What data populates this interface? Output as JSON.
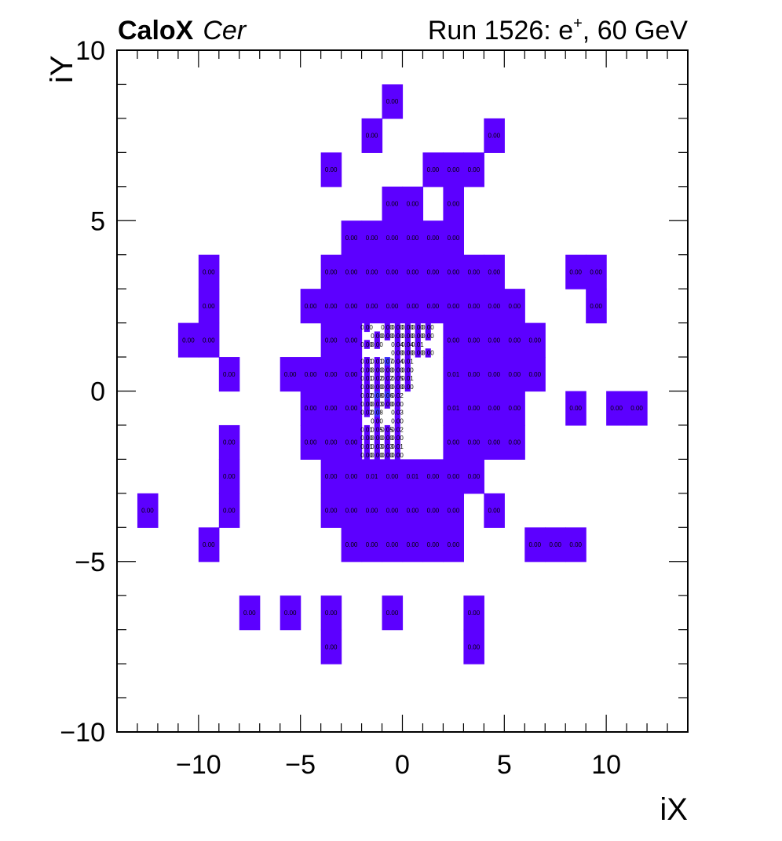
{
  "header": {
    "experiment": "CaloX",
    "channel": "Cer",
    "run_prefix": "Run 1526: e",
    "run_sup": "+",
    "run_suffix": ", 60 GeV"
  },
  "chart_data": {
    "type": "heatmap",
    "xlabel": "iX",
    "ylabel": "iY",
    "xlim": [
      -14,
      14
    ],
    "ylim": [
      -10,
      10
    ],
    "x_ticks": [
      -10,
      -5,
      0,
      5,
      10
    ],
    "y_ticks": [
      -10,
      -5,
      0,
      5,
      10
    ],
    "x_tick_labels": [
      "−10",
      "−5",
      "0",
      "5",
      "10"
    ],
    "y_tick_labels": [
      "−10",
      "−5",
      "0",
      "5",
      "10"
    ],
    "grid": false,
    "legend": "none",
    "colors": {
      "fill": "#5c00ff",
      "fill_high": "#3c2eff",
      "frame": "#000000"
    },
    "cells": [
      {
        "x": -0.5,
        "y": 8.5,
        "label": "0.00"
      },
      {
        "x": -1.5,
        "y": 7.5,
        "label": "0.00"
      },
      {
        "x": 4.5,
        "y": 7.5,
        "label": "0.00"
      },
      {
        "x": -3.5,
        "y": 6.5,
        "label": "0.00"
      },
      {
        "x": 1.5,
        "y": 6.5,
        "label": "0.00"
      },
      {
        "x": 2.5,
        "y": 6.5,
        "label": "0.00"
      },
      {
        "x": 3.5,
        "y": 6.5,
        "label": "0.00"
      },
      {
        "x": -0.5,
        "y": 5.5,
        "label": "0.00"
      },
      {
        "x": 0.5,
        "y": 5.5,
        "label": "0.00"
      },
      {
        "x": 2.5,
        "y": 5.5,
        "label": "0.00"
      },
      {
        "x": -2.5,
        "y": 4.5,
        "label": "0.00"
      },
      {
        "x": -1.5,
        "y": 4.5,
        "label": "0.00"
      },
      {
        "x": -0.5,
        "y": 4.5,
        "label": "0.00"
      },
      {
        "x": 0.5,
        "y": 4.5,
        "label": "0.00"
      },
      {
        "x": 1.5,
        "y": 4.5,
        "label": "0.00"
      },
      {
        "x": 2.5,
        "y": 4.5,
        "label": "0.00"
      },
      {
        "x": -9.5,
        "y": 3.5,
        "label": "0.00"
      },
      {
        "x": -3.5,
        "y": 3.5,
        "label": "0.00"
      },
      {
        "x": -2.5,
        "y": 3.5,
        "label": "0.00"
      },
      {
        "x": -1.5,
        "y": 3.5,
        "label": "0.00"
      },
      {
        "x": -0.5,
        "y": 3.5,
        "label": "0.00"
      },
      {
        "x": 0.5,
        "y": 3.5,
        "label": "0.00"
      },
      {
        "x": 1.5,
        "y": 3.5,
        "label": "0.00"
      },
      {
        "x": 2.5,
        "y": 3.5,
        "label": "0.00"
      },
      {
        "x": 3.5,
        "y": 3.5,
        "label": "0.00"
      },
      {
        "x": 4.5,
        "y": 3.5,
        "label": "0.00"
      },
      {
        "x": 8.5,
        "y": 3.5,
        "label": "0.00"
      },
      {
        "x": 9.5,
        "y": 3.5,
        "label": "0.00"
      },
      {
        "x": -9.5,
        "y": 2.5,
        "label": "0.00"
      },
      {
        "x": -4.5,
        "y": 2.5,
        "label": "0.00"
      },
      {
        "x": -3.5,
        "y": 2.5,
        "label": "0.00"
      },
      {
        "x": -2.5,
        "y": 2.5,
        "label": "0.00"
      },
      {
        "x": -1.5,
        "y": 2.5,
        "label": "0.00"
      },
      {
        "x": -0.5,
        "y": 2.5,
        "label": "0.00"
      },
      {
        "x": 0.5,
        "y": 2.5,
        "label": "0.00"
      },
      {
        "x": 1.5,
        "y": 2.5,
        "label": "0.00"
      },
      {
        "x": 2.5,
        "y": 2.5,
        "label": "0.00"
      },
      {
        "x": 3.5,
        "y": 2.5,
        "label": "0.00"
      },
      {
        "x": 4.5,
        "y": 2.5,
        "label": "0.00"
      },
      {
        "x": 5.5,
        "y": 2.5,
        "label": "0.00"
      },
      {
        "x": 9.5,
        "y": 2.5,
        "label": "0.00"
      },
      {
        "x": -10.5,
        "y": 1.5,
        "label": "0.00"
      },
      {
        "x": -9.5,
        "y": 1.5,
        "label": "0.00"
      },
      {
        "x": -3.5,
        "y": 1.5,
        "label": "0.00"
      },
      {
        "x": -2.5,
        "y": 1.5,
        "label": "0.00"
      },
      {
        "x": 2.5,
        "y": 1.5,
        "label": "0.00"
      },
      {
        "x": 3.5,
        "y": 1.5,
        "label": "0.00"
      },
      {
        "x": 4.5,
        "y": 1.5,
        "label": "0.00"
      },
      {
        "x": 5.5,
        "y": 1.5,
        "label": "0.00"
      },
      {
        "x": 6.5,
        "y": 1.5,
        "label": "0.00"
      },
      {
        "x": -8.5,
        "y": 0.5,
        "label": "0.00"
      },
      {
        "x": -5.5,
        "y": 0.5,
        "label": "0.00"
      },
      {
        "x": -4.5,
        "y": 0.5,
        "label": "0.00"
      },
      {
        "x": -3.5,
        "y": 0.5,
        "label": "0.00"
      },
      {
        "x": -2.5,
        "y": 0.5,
        "label": "0.00"
      },
      {
        "x": 2.5,
        "y": 0.5,
        "label": "0.01"
      },
      {
        "x": 3.5,
        "y": 0.5,
        "label": "0.00"
      },
      {
        "x": 4.5,
        "y": 0.5,
        "label": "0.00"
      },
      {
        "x": 5.5,
        "y": 0.5,
        "label": "0.00"
      },
      {
        "x": 6.5,
        "y": 0.5,
        "label": "0.00"
      },
      {
        "x": -4.5,
        "y": -0.5,
        "label": "0.00"
      },
      {
        "x": -3.5,
        "y": -0.5,
        "label": "0.00"
      },
      {
        "x": -2.5,
        "y": -0.5,
        "label": "0.00"
      },
      {
        "x": 2.5,
        "y": -0.5,
        "label": "0.01"
      },
      {
        "x": 3.5,
        "y": -0.5,
        "label": "0.00"
      },
      {
        "x": 4.5,
        "y": -0.5,
        "label": "0.00"
      },
      {
        "x": 5.5,
        "y": -0.5,
        "label": "0.00"
      },
      {
        "x": 8.5,
        "y": -0.5,
        "label": "0.00"
      },
      {
        "x": 10.5,
        "y": -0.5,
        "label": "0.00"
      },
      {
        "x": 11.5,
        "y": -0.5,
        "label": "0.00"
      },
      {
        "x": -8.5,
        "y": -1.5,
        "label": "0.00"
      },
      {
        "x": -4.5,
        "y": -1.5,
        "label": "0.00"
      },
      {
        "x": -3.5,
        "y": -1.5,
        "label": "0.00"
      },
      {
        "x": -2.5,
        "y": -1.5,
        "label": "0.00"
      },
      {
        "x": 2.5,
        "y": -1.5,
        "label": "0.00"
      },
      {
        "x": 3.5,
        "y": -1.5,
        "label": "0.00"
      },
      {
        "x": 4.5,
        "y": -1.5,
        "label": "0.00"
      },
      {
        "x": 5.5,
        "y": -1.5,
        "label": "0.00"
      },
      {
        "x": -8.5,
        "y": -2.5,
        "label": "0.00"
      },
      {
        "x": -3.5,
        "y": -2.5,
        "label": "0.00"
      },
      {
        "x": -2.5,
        "y": -2.5,
        "label": "0.00"
      },
      {
        "x": -1.5,
        "y": -2.5,
        "label": "0.01"
      },
      {
        "x": -0.5,
        "y": -2.5,
        "label": "0.00"
      },
      {
        "x": 0.5,
        "y": -2.5,
        "label": "0.01"
      },
      {
        "x": 1.5,
        "y": -2.5,
        "label": "0.00"
      },
      {
        "x": 2.5,
        "y": -2.5,
        "label": "0.00"
      },
      {
        "x": 3.5,
        "y": -2.5,
        "label": "0.00"
      },
      {
        "x": -12.5,
        "y": -3.5,
        "label": "0.00"
      },
      {
        "x": -8.5,
        "y": -3.5,
        "label": "0.00"
      },
      {
        "x": -3.5,
        "y": -3.5,
        "label": "0.00"
      },
      {
        "x": -2.5,
        "y": -3.5,
        "label": "0.00"
      },
      {
        "x": -1.5,
        "y": -3.5,
        "label": "0.00"
      },
      {
        "x": -0.5,
        "y": -3.5,
        "label": "0.00"
      },
      {
        "x": 0.5,
        "y": -3.5,
        "label": "0.00"
      },
      {
        "x": 1.5,
        "y": -3.5,
        "label": "0.00"
      },
      {
        "x": 2.5,
        "y": -3.5,
        "label": "0.00"
      },
      {
        "x": 4.5,
        "y": -3.5,
        "label": "0.00"
      },
      {
        "x": -9.5,
        "y": -4.5,
        "label": "0.00"
      },
      {
        "x": -2.5,
        "y": -4.5,
        "label": "0.00"
      },
      {
        "x": -1.5,
        "y": -4.5,
        "label": "0.00"
      },
      {
        "x": -0.5,
        "y": -4.5,
        "label": "0.00"
      },
      {
        "x": 0.5,
        "y": -4.5,
        "label": "0.00"
      },
      {
        "x": 1.5,
        "y": -4.5,
        "label": "0.00"
      },
      {
        "x": 2.5,
        "y": -4.5,
        "label": "0.00"
      },
      {
        "x": 6.5,
        "y": -4.5,
        "label": "0.00"
      },
      {
        "x": 7.5,
        "y": -4.5,
        "label": "0.00"
      },
      {
        "x": 8.5,
        "y": -4.5,
        "label": "0.00"
      },
      {
        "x": -7.5,
        "y": -6.5,
        "label": "0.00"
      },
      {
        "x": -5.5,
        "y": -6.5,
        "label": "0.00"
      },
      {
        "x": -3.5,
        "y": -6.5,
        "label": "0.00"
      },
      {
        "x": -0.5,
        "y": -6.5,
        "label": "0.00"
      },
      {
        "x": 3.5,
        "y": -6.5,
        "label": "0.00"
      },
      {
        "x": -3.5,
        "y": -7.5,
        "label": "0.00"
      },
      {
        "x": 3.5,
        "y": -7.5,
        "label": "0.00"
      }
    ],
    "fine_cells": [
      {
        "x": -1.75,
        "y": 1.875,
        "label": "0.00"
      },
      {
        "x": -0.75,
        "y": 1.875,
        "label": "0.00"
      },
      {
        "x": -0.25,
        "y": 1.875,
        "label": "0.00"
      },
      {
        "x": 0.25,
        "y": 1.875,
        "label": "0.00"
      },
      {
        "x": 0.75,
        "y": 1.875,
        "label": "0.00"
      },
      {
        "x": 1.25,
        "y": 1.875,
        "label": "0.00"
      },
      {
        "x": -1.25,
        "y": 1.625,
        "label": "0.00"
      },
      {
        "x": -0.75,
        "y": 1.625,
        "label": "0.00"
      },
      {
        "x": -0.25,
        "y": 1.625,
        "label": "0.00"
      },
      {
        "x": 0.25,
        "y": 1.625,
        "label": "0.00"
      },
      {
        "x": 0.75,
        "y": 1.625,
        "label": "0.00"
      },
      {
        "x": 1.25,
        "y": 1.625,
        "label": "0.00"
      },
      {
        "x": -1.75,
        "y": 1.375,
        "label": "0.00"
      },
      {
        "x": -1.25,
        "y": 1.375,
        "label": "0.00"
      },
      {
        "x": -0.25,
        "y": 1.375,
        "label": "0.04"
      },
      {
        "x": 0.25,
        "y": 1.375,
        "label": "0.04"
      },
      {
        "x": 0.75,
        "y": 1.375,
        "label": "0.01"
      },
      {
        "x": -0.25,
        "y": 1.125,
        "label": "0.00"
      },
      {
        "x": 0.25,
        "y": 1.125,
        "label": "0.00"
      },
      {
        "x": 0.75,
        "y": 1.125,
        "label": "0.00"
      },
      {
        "x": 1.25,
        "y": 1.125,
        "label": "0.00"
      },
      {
        "x": -1.75,
        "y": 0.875,
        "label": "0.01"
      },
      {
        "x": -1.25,
        "y": 0.875,
        "label": "0.01"
      },
      {
        "x": -0.75,
        "y": 0.875,
        "label": "0.07",
        "high": true
      },
      {
        "x": -0.25,
        "y": 0.875,
        "label": "0.04"
      },
      {
        "x": 0.25,
        "y": 0.875,
        "label": "0.01"
      },
      {
        "x": -1.75,
        "y": 0.625,
        "label": "0.00"
      },
      {
        "x": -1.25,
        "y": 0.625,
        "label": "0.00"
      },
      {
        "x": -0.75,
        "y": 0.625,
        "label": "0.00"
      },
      {
        "x": -0.25,
        "y": 0.625,
        "label": "0.00"
      },
      {
        "x": 0.25,
        "y": 0.625,
        "label": "0.00"
      },
      {
        "x": -1.75,
        "y": 0.375,
        "label": "0.01"
      },
      {
        "x": -1.25,
        "y": 0.375,
        "label": "0.02"
      },
      {
        "x": -0.75,
        "y": 0.375,
        "label": "0.02"
      },
      {
        "x": -0.25,
        "y": 0.375,
        "label": "0.05"
      },
      {
        "x": 0.25,
        "y": 0.375,
        "label": "0.01"
      },
      {
        "x": -1.75,
        "y": 0.125,
        "label": "0.00"
      },
      {
        "x": -1.25,
        "y": 0.125,
        "label": "0.00"
      },
      {
        "x": -0.75,
        "y": 0.125,
        "label": "0.00"
      },
      {
        "x": -0.25,
        "y": 0.125,
        "label": "0.00"
      },
      {
        "x": 0.25,
        "y": 0.125,
        "label": "0.00"
      },
      {
        "x": -1.75,
        "y": -0.125,
        "label": "0.02"
      },
      {
        "x": -1.25,
        "y": -0.125,
        "label": "0.08",
        "high": true
      },
      {
        "x": -0.75,
        "y": -0.125,
        "label": "0.06",
        "high": true
      },
      {
        "x": -0.25,
        "y": -0.125,
        "label": "0.02"
      },
      {
        "x": -1.75,
        "y": -0.375,
        "label": "0.00"
      },
      {
        "x": -1.25,
        "y": -0.375,
        "label": "0.03"
      },
      {
        "x": -0.75,
        "y": -0.375,
        "label": "0.00"
      },
      {
        "x": -0.25,
        "y": -0.375,
        "label": "0.00"
      },
      {
        "x": -1.75,
        "y": -0.625,
        "label": "0.02"
      },
      {
        "x": -1.25,
        "y": -0.625,
        "label": "0.08",
        "high": true
      },
      {
        "x": -0.25,
        "y": -0.625,
        "label": "0.03"
      },
      {
        "x": -1.25,
        "y": -0.875,
        "label": "0.00"
      },
      {
        "x": -0.25,
        "y": -0.875,
        "label": "0.00"
      },
      {
        "x": -1.75,
        "y": -1.125,
        "label": "0.01"
      },
      {
        "x": -1.25,
        "y": -1.125,
        "label": "0.05"
      },
      {
        "x": -0.75,
        "y": -1.125,
        "label": "0.05"
      },
      {
        "x": -0.25,
        "y": -1.125,
        "label": "0.02"
      },
      {
        "x": -1.75,
        "y": -1.375,
        "label": "0.00"
      },
      {
        "x": -1.25,
        "y": -1.375,
        "label": "0.00"
      },
      {
        "x": -0.75,
        "y": -1.375,
        "label": "0.00"
      },
      {
        "x": -0.25,
        "y": -1.375,
        "label": "0.00"
      },
      {
        "x": -1.75,
        "y": -1.625,
        "label": "0.01"
      },
      {
        "x": -1.25,
        "y": -1.625,
        "label": "0.03"
      },
      {
        "x": -0.75,
        "y": -1.625,
        "label": "0.03"
      },
      {
        "x": -0.25,
        "y": -1.625,
        "label": "0.01"
      },
      {
        "x": -1.75,
        "y": -1.875,
        "label": "0.00"
      },
      {
        "x": -1.25,
        "y": -1.875,
        "label": "0.00"
      },
      {
        "x": -0.75,
        "y": -1.875,
        "label": "0.00"
      },
      {
        "x": -0.25,
        "y": -1.875,
        "label": "0.00"
      }
    ]
  }
}
